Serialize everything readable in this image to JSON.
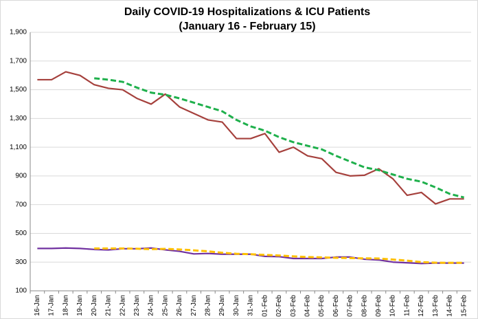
{
  "chart_data": {
    "type": "line",
    "title": "Daily COVID-19 Hospitalizations & ICU Patients",
    "subtitle": "(January 16 - February 15)",
    "categories": [
      "16-Jan",
      "17-Jan",
      "18-Jan",
      "19-Jan",
      "20-Jan",
      "21-Jan",
      "22-Jan",
      "23-Jan",
      "24-Jan",
      "25-Jan",
      "26-Jan",
      "27-Jan",
      "28-Jan",
      "29-Jan",
      "30-Jan",
      "31-Jan",
      "01-Feb",
      "02-Feb",
      "03-Feb",
      "04-Feb",
      "05-Feb",
      "06-Feb",
      "07-Feb",
      "08-Feb",
      "09-Feb",
      "10-Feb",
      "11-Feb",
      "12-Feb",
      "13-Feb",
      "14-Feb",
      "15-Feb"
    ],
    "series": [
      {
        "color": "#a5403c",
        "dashed": false,
        "values": [
          1570,
          1570,
          1625,
          1600,
          1535,
          1510,
          1500,
          1440,
          1400,
          1470,
          1380,
          1335,
          1290,
          1275,
          1160,
          1160,
          1195,
          1065,
          1100,
          1040,
          1020,
          925,
          900,
          905,
          950,
          880,
          765,
          785,
          705,
          740,
          740
        ]
      },
      {
        "color": "#1fb04c",
        "dashed": true,
        "values": [
          null,
          null,
          null,
          null,
          1580,
          1570,
          1555,
          1515,
          1480,
          1465,
          1440,
          1410,
          1380,
          1350,
          1290,
          1245,
          1215,
          1170,
          1135,
          1110,
          1085,
          1040,
          1000,
          960,
          940,
          910,
          880,
          860,
          820,
          775,
          750
        ]
      },
      {
        "color": "#7030a0",
        "dashed": false,
        "values": [
          395,
          395,
          398,
          395,
          388,
          385,
          393,
          393,
          398,
          385,
          375,
          357,
          360,
          355,
          355,
          355,
          340,
          338,
          325,
          325,
          325,
          335,
          335,
          320,
          315,
          300,
          295,
          290,
          293,
          293,
          293
        ]
      },
      {
        "color": "#ffc000",
        "dashed": true,
        "values": [
          null,
          null,
          null,
          null,
          395,
          395,
          395,
          393,
          390,
          392,
          388,
          382,
          375,
          365,
          358,
          355,
          350,
          346,
          340,
          335,
          333,
          330,
          328,
          326,
          325,
          318,
          310,
          300,
          296,
          295,
          295
        ]
      }
    ],
    "ylim": [
      100,
      1900
    ],
    "yticks": [
      100,
      300,
      500,
      700,
      900,
      {
        "value": 1100,
        "label": "1,100"
      },
      {
        "value": 1300,
        "label": "1,300"
      },
      {
        "value": 1500,
        "label": "1,500"
      },
      {
        "value": 1700,
        "label": "1,700"
      },
      {
        "value": 1900,
        "label": "1,900"
      }
    ],
    "grid": true
  }
}
